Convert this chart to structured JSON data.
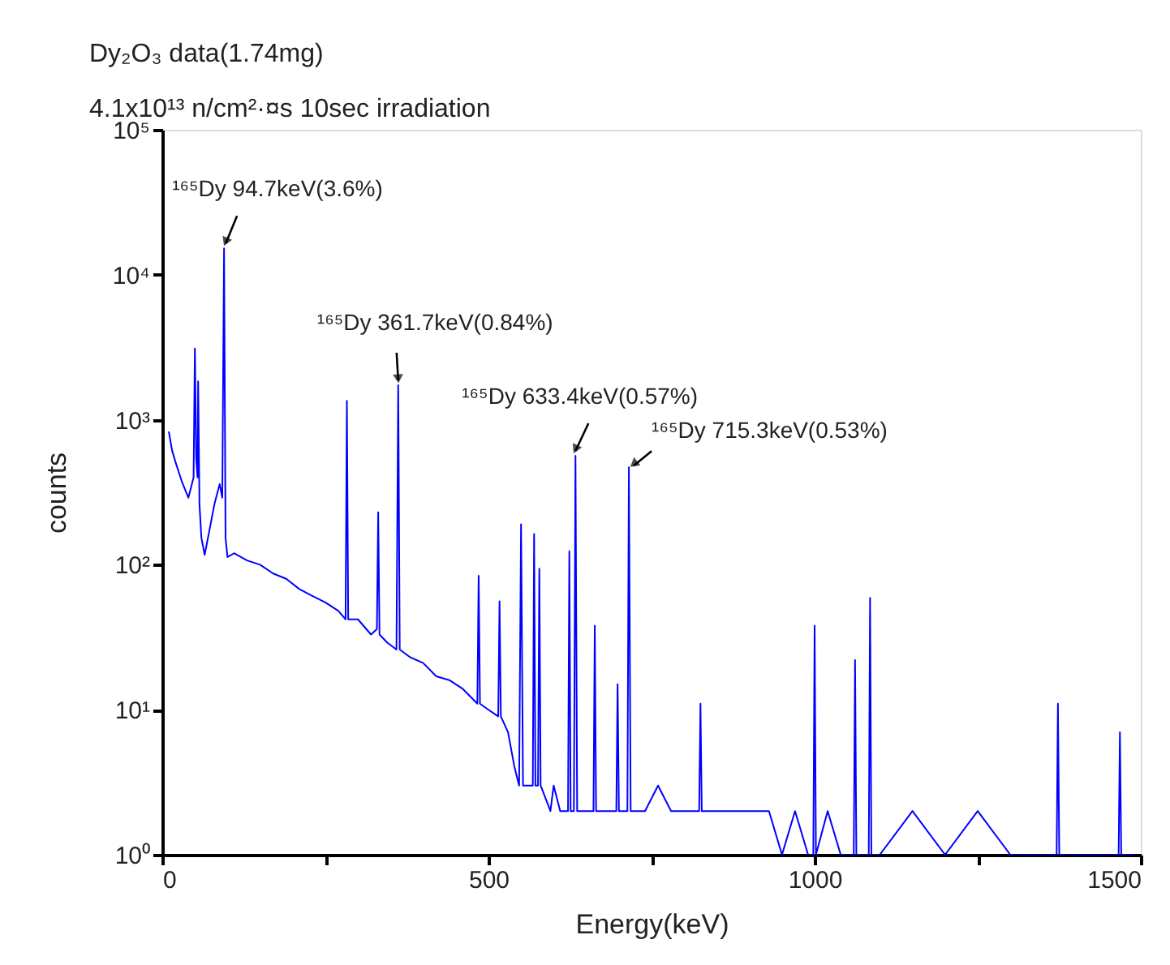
{
  "chart_data": {
    "type": "line",
    "title": "Dy₂O₃ data(1.74mg)",
    "subtitle": "4.1x10¹³ n/cm²·¤s 10sec irradiation",
    "xlabel": "Energy(keV)",
    "ylabel": "counts",
    "x": [
      10,
      15,
      20,
      30,
      40,
      48,
      50,
      52,
      54,
      55,
      57,
      60,
      65,
      70,
      80,
      88,
      92,
      94.7,
      97,
      100,
      110,
      130,
      150,
      170,
      190,
      210,
      230,
      250,
      270,
      281,
      283,
      285,
      300,
      320,
      329,
      331,
      333,
      345,
      359,
      361.7,
      364,
      380,
      400,
      420,
      440,
      460,
      483,
      485,
      487,
      500,
      515,
      517,
      519,
      530,
      540,
      547,
      550,
      553,
      560,
      568,
      570,
      572,
      576,
      578,
      580,
      595,
      600,
      610,
      622,
      624,
      626,
      631,
      633.4,
      636,
      650,
      661,
      663,
      665,
      680,
      696,
      698,
      700,
      713,
      715.3,
      718,
      740,
      760,
      780,
      800,
      823,
      825,
      827,
      850,
      880,
      900,
      930,
      950,
      970,
      990,
      998,
      1000,
      1002,
      1020,
      1040,
      1060,
      1062,
      1064,
      1083,
      1085,
      1087,
      1100,
      1150,
      1200,
      1250,
      1300,
      1350,
      1371,
      1373,
      1375,
      1400,
      1450,
      1466,
      1468,
      1470,
      1490
    ],
    "series": [
      {
        "color": "#0000ff",
        "values": [
          830,
          615,
          515,
          375,
          290,
          400,
          3100,
          545,
          400,
          1840,
          262,
          153,
          117,
          153,
          262,
          360,
          290,
          15200,
          153,
          113,
          120,
          107,
          100,
          87,
          80,
          68,
          61,
          55,
          48,
          42,
          1350,
          42,
          42,
          33,
          36,
          230,
          33,
          29,
          26,
          1730,
          26,
          23,
          21,
          17,
          16,
          14,
          11,
          84,
          11,
          10,
          9,
          56,
          9,
          7,
          4,
          3,
          190,
          3,
          3,
          3,
          163,
          3,
          3,
          94,
          3,
          2,
          3,
          2,
          2,
          124,
          2,
          2,
          565,
          2,
          2,
          2,
          38,
          2,
          2,
          2,
          15,
          2,
          2,
          470,
          2,
          2,
          3,
          2,
          2,
          2,
          11,
          2,
          2,
          2,
          2,
          2,
          1,
          2,
          1,
          1,
          38,
          1,
          2,
          1,
          1,
          22,
          1,
          1,
          59,
          1,
          1,
          2,
          1,
          2,
          1,
          1,
          1,
          11,
          1,
          1,
          1,
          1,
          7,
          1,
          1
        ]
      }
    ],
    "xlim": [
      0,
      1500
    ],
    "xticks": [
      0,
      {
        "value": 250,
        "label": null
      },
      500,
      {
        "value": 750,
        "label": null
      },
      1000,
      {
        "value": 1250,
        "label": null
      },
      1500
    ],
    "ylim": [
      1,
      100000
    ],
    "yticks": [
      {
        "value": 1,
        "label": "10⁰"
      },
      {
        "value": 10,
        "label": "10¹"
      },
      {
        "value": 100,
        "label": "10²"
      },
      {
        "value": 1000,
        "label": "10³"
      },
      {
        "value": 10000,
        "label": "10⁴"
      },
      {
        "value": 100000,
        "label": "10⁵"
      }
    ],
    "log": true,
    "grid": false,
    "annotations": [
      {
        "text": "¹⁶⁵Dy 94.7keV(3.6%)",
        "x": 94.7,
        "y": 15200
      },
      {
        "text": "¹⁶⁵Dy 361.7keV(0.84%)",
        "x": 361.7,
        "y": 1730
      },
      {
        "text": "¹⁶⁵Dy 633.4keV(0.57%)",
        "x": 633.4,
        "y": 565
      },
      {
        "text": "¹⁶⁵Dy 715.3keV(0.53%)",
        "x": 715.3,
        "y": 470
      }
    ]
  }
}
